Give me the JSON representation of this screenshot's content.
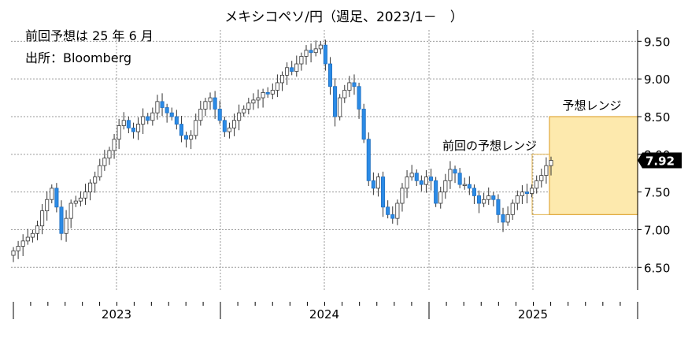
{
  "chart_data": {
    "type": "candlestick",
    "title": "メキシコペソ/円（週足、2023/1－　）",
    "annotations": [
      "前回予想は 25 年 6 月",
      "出所：Bloomberg"
    ],
    "ylim": [
      6.2,
      9.65
    ],
    "yticks": [
      "6.50",
      "7.00",
      "7.50",
      "8.00",
      "8.50",
      "9.00",
      "9.50"
    ],
    "year_labels": [
      "2023",
      "2024",
      "2025"
    ],
    "last_value": "7.92",
    "up_color": "#ffffff",
    "down_color": "#2b8be6",
    "ranges": [
      {
        "label": "前回の予想レンジ",
        "start": "2025-01",
        "low": 7.2,
        "high": 8.0
      },
      {
        "label": "予想レンジ",
        "start": "2025-02",
        "low": 7.2,
        "high": 8.5
      }
    ],
    "closes": [
      6.72,
      6.78,
      6.85,
      6.9,
      6.95,
      7.05,
      7.25,
      7.4,
      7.55,
      7.3,
      6.95,
      7.15,
      7.35,
      7.38,
      7.42,
      7.5,
      7.62,
      7.7,
      7.85,
      7.95,
      8.05,
      8.2,
      8.38,
      8.45,
      8.35,
      8.3,
      8.4,
      8.5,
      8.45,
      8.55,
      8.7,
      8.62,
      8.55,
      8.5,
      8.4,
      8.25,
      8.2,
      8.25,
      8.45,
      8.6,
      8.7,
      8.75,
      8.6,
      8.45,
      8.3,
      8.35,
      8.45,
      8.55,
      8.6,
      8.68,
      8.72,
      8.75,
      8.82,
      8.8,
      8.85,
      8.95,
      9.05,
      9.15,
      9.1,
      9.2,
      9.3,
      9.38,
      9.35,
      9.4,
      9.45,
      9.2,
      8.9,
      8.5,
      8.75,
      8.85,
      8.95,
      8.9,
      8.6,
      8.2,
      7.65,
      7.55,
      7.7,
      7.3,
      7.2,
      7.15,
      7.35,
      7.55,
      7.7,
      7.75,
      7.65,
      7.6,
      7.7,
      7.65,
      7.35,
      7.5,
      7.65,
      7.8,
      7.75,
      7.6,
      7.6,
      7.55,
      7.45,
      7.35,
      7.4,
      7.45,
      7.4,
      7.2,
      7.1,
      7.2,
      7.35,
      7.45,
      7.5,
      7.48,
      7.55,
      7.65,
      7.72,
      7.85,
      7.92
    ]
  }
}
